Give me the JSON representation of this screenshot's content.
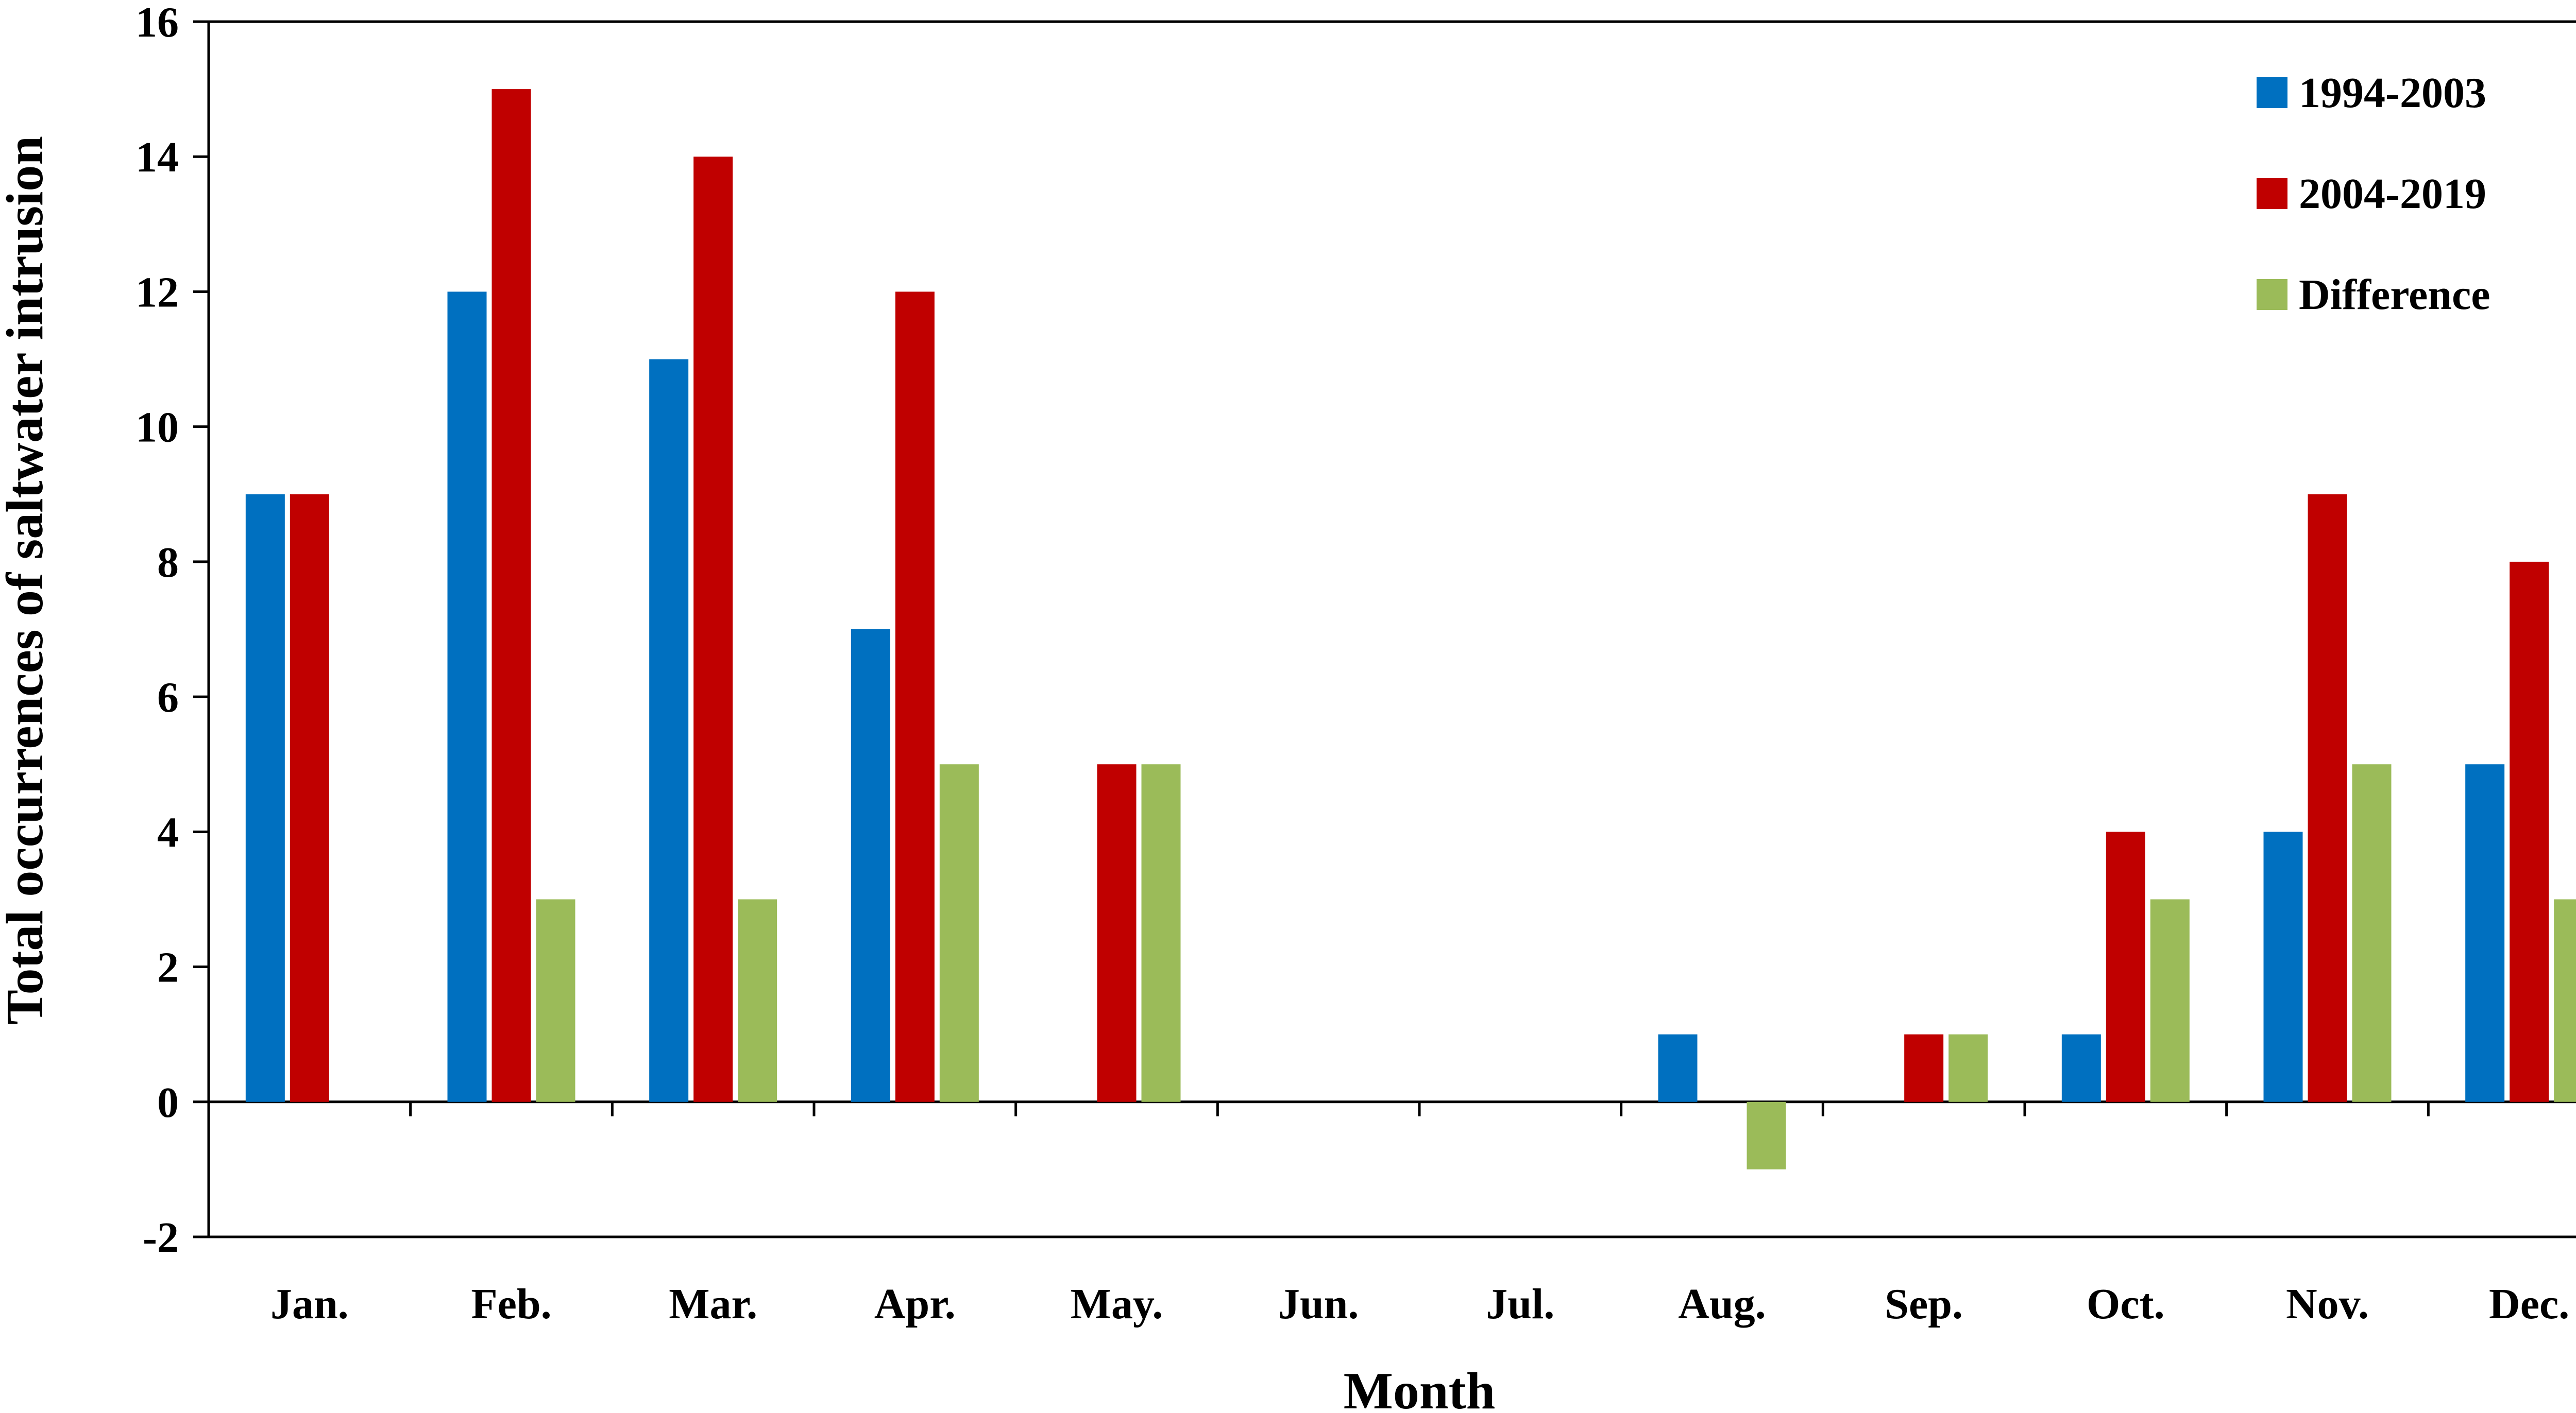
{
  "chart_data": {
    "type": "bar",
    "title": "",
    "xlabel": "Month",
    "ylabel": "Total occurrences of saltwater intrusion",
    "categories": [
      "Jan.",
      "Feb.",
      "Mar.",
      "Apr.",
      "May.",
      "Jun.",
      "Jul.",
      "Aug.",
      "Sep.",
      "Oct.",
      "Nov.",
      "Dec."
    ],
    "series": [
      {
        "name": "1994-2003",
        "color": "#0070C0",
        "values": [
          9,
          12,
          11,
          7,
          0,
          0,
          0,
          1,
          0,
          1,
          4,
          5
        ]
      },
      {
        "name": "2004-2019",
        "color": "#C00000",
        "values": [
          9,
          15,
          14,
          12,
          5,
          0,
          0,
          0,
          1,
          4,
          9,
          8
        ]
      },
      {
        "name": "Difference",
        "color": "#9BBB59",
        "values": [
          0,
          3,
          3,
          5,
          5,
          0,
          0,
          -1,
          1,
          3,
          5,
          3
        ]
      }
    ],
    "ylim": [
      -2,
      16
    ],
    "yticks": [
      "-2",
      "0",
      "2",
      "4",
      "6",
      "8",
      "10",
      "12",
      "14",
      "16"
    ],
    "grid": false,
    "legend": "top-right"
  }
}
